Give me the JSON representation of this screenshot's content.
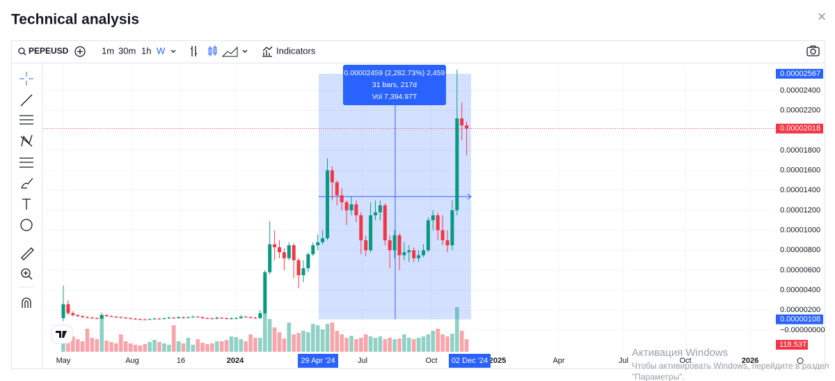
{
  "dialog": {
    "title": "Technical analysis",
    "close": "×"
  },
  "toolbar": {
    "symbol": "PEPEUSD",
    "intervals": [
      "1m",
      "30m",
      "1h",
      "W"
    ],
    "indicators": "Indicators"
  },
  "chart_data": {
    "type": "candlestick",
    "categories": [
      null,
      null,
      null,
      null,
      null,
      null,
      null,
      null,
      null,
      null,
      null,
      null,
      null,
      null,
      null,
      null,
      null,
      null,
      null,
      null,
      null,
      null,
      null,
      null,
      null,
      null,
      null,
      null,
      null,
      null,
      null,
      null,
      null,
      null,
      null,
      null,
      null,
      null,
      null,
      null,
      null,
      null,
      null,
      null,
      null,
      null,
      null,
      null,
      null,
      null,
      null,
      null,
      null,
      null,
      null,
      null,
      null,
      null,
      null,
      null,
      null,
      null,
      null,
      null,
      null,
      null,
      null,
      null,
      null,
      null,
      null,
      null,
      null,
      null,
      null,
      null,
      null,
      null,
      null,
      null,
      null,
      null,
      null,
      null,
      null
    ],
    "open": [
      1.2e-06,
      2.6e-06,
      1.7e-06,
      1.5e-06,
      1.4e-06,
      1.3e-06,
      1.25e-06,
      1.2e-06,
      1.15e-06,
      1.5e-06,
      1.4e-06,
      1.35e-06,
      1.3e-06,
      1.25e-06,
      1.2e-06,
      1.15e-06,
      1.1e-06,
      1.08e-06,
      1.05e-06,
      1.1e-06,
      1.15e-06,
      1.12e-06,
      1.18e-06,
      1.25e-06,
      1.2e-06,
      1.3e-06,
      1.22e-06,
      1.28e-06,
      1.35e-06,
      1.3e-06,
      1.2e-06,
      1.18e-06,
      1.15e-06,
      1.25e-06,
      1.2e-06,
      1.12e-06,
      1.18e-06,
      1.2e-06,
      1.35e-06,
      1.3e-06,
      1.25e-06,
      1.2e-06,
      1.7e-06,
      5.8e-06,
      8.6e-06,
      8.3e-06,
      7.8e-06,
      7.2e-06,
      8.5e-06,
      7e-06,
      5.5e-06,
      6.2e-06,
      7.6e-06,
      8.5e-06,
      8.8e-06,
      9.2e-06,
      1.6e-05,
      1.48e-05,
      1.35e-05,
      1.28e-05,
      1.2e-05,
      1.26e-05,
      1.15e-05,
      9e-06,
      8e-06,
      1.15e-05,
      1.18e-05,
      1.25e-05,
      9e-06,
      8e-06,
      9.5e-06,
      7.5e-06,
      7.8e-06,
      8e-06,
      7.2e-06,
      7.5e-06,
      8e-06,
      1.1e-05,
      1.15e-05,
      1e-05,
      9e-06,
      8.5e-06,
      1.2e-05,
      2.12e-05,
      2.05e-05
    ],
    "high": [
      4.46e-06,
      3e-06,
      1.9e-06,
      1.6e-06,
      1.5e-06,
      1.4e-06,
      1.35e-06,
      1.28e-06,
      1.75e-06,
      1.6e-06,
      1.5e-06,
      1.45e-06,
      1.38e-06,
      1.32e-06,
      1.28e-06,
      1.22e-06,
      1.18e-06,
      1.15e-06,
      1.2e-06,
      1.25e-06,
      1.22e-06,
      1.28e-06,
      1.35e-06,
      1.32e-06,
      1.4e-06,
      1.35e-06,
      1.38e-06,
      1.45e-06,
      1.42e-06,
      1.36e-06,
      1.28e-06,
      1.25e-06,
      1.35e-06,
      1.3e-06,
      1.26e-06,
      1.28e-06,
      1.3e-06,
      1.5e-06,
      1.45e-06,
      1.4e-06,
      1.35e-06,
      2e-06,
      6e-06,
      1.09e-05,
      1e-05,
      9e-06,
      8.2e-06,
      8.8e-06,
      8.7e-06,
      7.2e-06,
      7e-06,
      7.8e-06,
      8.8e-06,
      9.6e-06,
      1e-05,
      1.72e-05,
      1.64e-05,
      1.5e-05,
      1.42e-05,
      1.3e-05,
      1.34e-05,
      1.3e-05,
      1.18e-05,
      9.5e-06,
      1.28e-05,
      1.3e-05,
      1.3e-05,
      1.27e-05,
      9.5e-06,
      1e-05,
      9.7e-06,
      8.8e-06,
      8.5e-06,
      8.3e-06,
      8e-06,
      8.6e-06,
      1.13e-05,
      1.2e-05,
      1.18e-05,
      1.15e-05,
      1e-05,
      1.3e-05,
      2.608e-05,
      2.28e-05,
      2.09e-05
    ],
    "low": [
      9e-07,
      1.5e-06,
      1.4e-06,
      1.3e-06,
      1.22e-06,
      1.18e-06,
      1.12e-06,
      1.08e-06,
      1.12e-06,
      1.32e-06,
      1.28e-06,
      1.22e-06,
      1.18e-06,
      1.12e-06,
      1.08e-06,
      1.02e-06,
      1e-06,
      9.8e-07,
      1e-06,
      1.05e-06,
      1.05e-06,
      1.08e-06,
      1.12e-06,
      1.14e-06,
      1.16e-06,
      1.15e-06,
      1.18e-06,
      1.22e-06,
      1.24e-06,
      1.14e-06,
      1.1e-06,
      1.08e-06,
      1.1e-06,
      1.12e-06,
      1.06e-06,
      1.08e-06,
      1.1e-06,
      1.15e-06,
      1.22e-06,
      1.18e-06,
      1.12e-06,
      1.15e-06,
      1.6e-06,
      5.6e-06,
      7e-06,
      7.2e-06,
      6e-06,
      7e-06,
      5.2e-06,
      4.2e-06,
      4.8e-06,
      5.8e-06,
      7.4e-06,
      8e-06,
      8.6e-06,
      9e-06,
      1.3e-05,
      1.25e-05,
      1.2e-05,
      1.05e-05,
      1.15e-05,
      1.08e-05,
      7.6e-06,
      7.4e-06,
      7.8e-06,
      1.1e-05,
      1.1e-05,
      8.5e-06,
      6.2e-06,
      7.2e-06,
      6e-06,
      7e-06,
      6.8e-06,
      6.8e-06,
      6.8e-06,
      7.3e-06,
      7.8e-06,
      1e-05,
      9e-06,
      8.5e-06,
      7.8e-06,
      8e-06,
      1.15e-05,
      1.9e-05,
      1.75e-05
    ],
    "close": [
      2.6e-06,
      1.7e-06,
      1.5e-06,
      1.4e-06,
      1.3e-06,
      1.25e-06,
      1.2e-06,
      1.15e-06,
      1.5e-06,
      1.4e-06,
      1.35e-06,
      1.3e-06,
      1.25e-06,
      1.2e-06,
      1.15e-06,
      1.1e-06,
      1.08e-06,
      1.05e-06,
      1.1e-06,
      1.15e-06,
      1.12e-06,
      1.18e-06,
      1.25e-06,
      1.2e-06,
      1.3e-06,
      1.22e-06,
      1.28e-06,
      1.35e-06,
      1.3e-06,
      1.2e-06,
      1.18e-06,
      1.15e-06,
      1.25e-06,
      1.2e-06,
      1.12e-06,
      1.18e-06,
      1.2e-06,
      1.35e-06,
      1.3e-06,
      1.25e-06,
      1.2e-06,
      1.7e-06,
      5.8e-06,
      8.6e-06,
      8.3e-06,
      7.8e-06,
      7.2e-06,
      8.5e-06,
      7e-06,
      5.5e-06,
      6.2e-06,
      7.6e-06,
      8.5e-06,
      8.8e-06,
      9.2e-06,
      1.6e-05,
      1.48e-05,
      1.35e-05,
      1.28e-05,
      1.2e-05,
      1.26e-05,
      1.15e-05,
      9e-06,
      8e-06,
      1.15e-05,
      1.18e-05,
      1.25e-05,
      9e-06,
      8e-06,
      9.5e-06,
      7.5e-06,
      7.8e-06,
      8e-06,
      7.2e-06,
      7.5e-06,
      8e-06,
      1.1e-05,
      1.15e-05,
      1e-05,
      9e-06,
      8.5e-06,
      1.2e-05,
      2.12e-05,
      2.05e-05,
      2.018e-05
    ],
    "volume": [
      350,
      300,
      220,
      180,
      150,
      330,
      200,
      180,
      530,
      160,
      140,
      120,
      250,
      150,
      120,
      100,
      90,
      110,
      140,
      170,
      140,
      120,
      100,
      380,
      150,
      120,
      200,
      100,
      180,
      130,
      110,
      120,
      150,
      150,
      170,
      220,
      210,
      180,
      150,
      250,
      200,
      200,
      560,
      470,
      350,
      280,
      190,
      420,
      250,
      270,
      300,
      280,
      400,
      380,
      320,
      400,
      420,
      300,
      250,
      200,
      230,
      180,
      200,
      250,
      220,
      200,
      220,
      180,
      200,
      180,
      190,
      250,
      200,
      180,
      200,
      220,
      250,
      300,
      330,
      250,
      220,
      260,
      640,
      300,
      180
    ],
    "up_color": "#089981",
    "down_color": "#f23645",
    "ylim": [
      -2.37e-06,
      2.65e-05
    ],
    "yticks": [
      {
        "value": 0,
        "label": "−0.00000000"
      },
      {
        "value": 2e-06,
        "label": "0.00000200"
      },
      {
        "value": 4e-06,
        "label": "0.00000400"
      },
      {
        "value": 6e-06,
        "label": "0.00000600"
      },
      {
        "value": 8e-06,
        "label": "0.00000800"
      },
      {
        "value": 1e-05,
        "label": "0.00001000"
      },
      {
        "value": 1.2e-05,
        "label": "0.00001200"
      },
      {
        "value": 1.4e-05,
        "label": "0.00001400"
      },
      {
        "value": 1.6e-05,
        "label": "0.00001600"
      },
      {
        "value": 1.8e-05,
        "label": "0.00001800"
      },
      {
        "value": 2.2e-05,
        "label": "0.00002200"
      },
      {
        "value": 2.4e-05,
        "label": "0.00002400"
      }
    ],
    "grid": true,
    "last_price": {
      "value": 2.018e-05,
      "label": "0.00002018"
    },
    "volume_label": "118.53T",
    "time_labels": [
      "May",
      "Aug",
      "16",
      "2024",
      "Jul",
      "Oct",
      "2025",
      "Apr",
      "Jul",
      "Oct",
      "2026"
    ],
    "measure": {
      "top": {
        "value": 2.567e-05,
        "label": "0.00002567"
      },
      "bottom": {
        "value": 1.08e-06,
        "label": "0.00000108"
      },
      "start": "29 Apr '24",
      "end": "02 Dec '24",
      "lines": [
        "0.00002459 (2,282.73%) 2,459",
        "31 bars, 217d",
        "Vol 7,394.97T"
      ]
    }
  },
  "watermark": [
    "Активация Windows",
    "Чтобы активировать Windows, перейдите в раздел",
    "\"Параметры\"."
  ]
}
